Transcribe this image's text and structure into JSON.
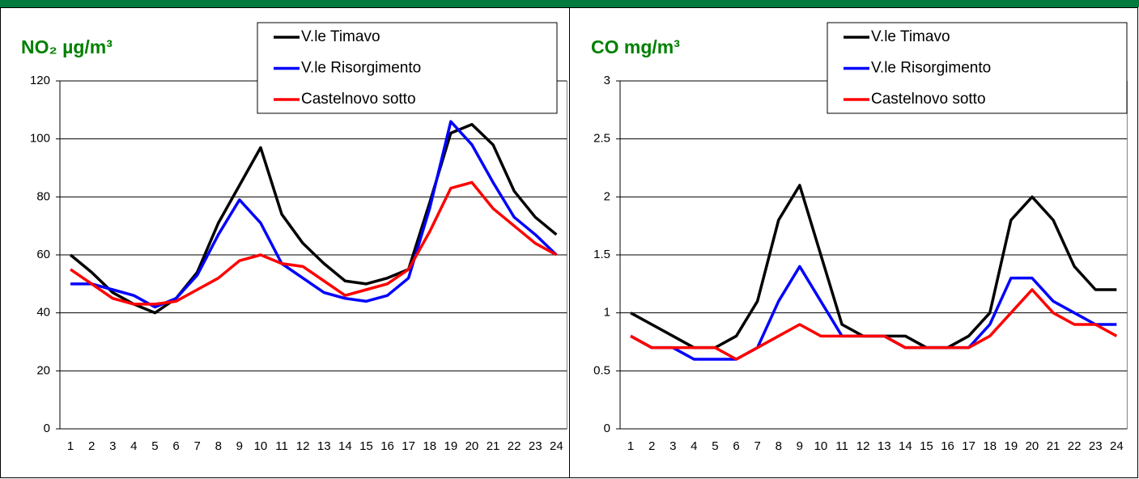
{
  "chart_data": [
    {
      "type": "line",
      "title": "NO₂ µg/m³",
      "categories": [
        "1",
        "2",
        "3",
        "4",
        "5",
        "6",
        "7",
        "8",
        "9",
        "10",
        "11",
        "12",
        "13",
        "14",
        "15",
        "16",
        "17",
        "18",
        "19",
        "20",
        "21",
        "22",
        "23",
        "24"
      ],
      "ylim": [
        0,
        120
      ],
      "yticks": [
        0,
        20,
        40,
        60,
        80,
        100,
        120
      ],
      "grid": true,
      "series": [
        {
          "name": "V.le Timavo",
          "color": "#000000",
          "values": [
            60,
            54,
            47,
            43,
            40,
            45,
            54,
            71,
            84,
            97,
            74,
            64,
            57,
            51,
            50,
            52,
            55,
            78,
            102,
            105,
            98,
            82,
            73,
            67
          ]
        },
        {
          "name": "V.le Risorgimento",
          "color": "#0000ff",
          "values": [
            50,
            50,
            48,
            46,
            42,
            45,
            53,
            67,
            79,
            71,
            57,
            52,
            47,
            45,
            44,
            46,
            52,
            76,
            106,
            98,
            85,
            73,
            67,
            60
          ]
        },
        {
          "name": "Castelnovo sotto",
          "color": "#ff0000",
          "values": [
            55,
            50,
            45,
            43,
            43,
            44,
            48,
            52,
            58,
            60,
            57,
            56,
            51,
            46,
            48,
            50,
            55,
            68,
            83,
            85,
            76,
            70,
            64,
            60
          ]
        }
      ]
    },
    {
      "type": "line",
      "title": "CO mg/m³",
      "categories": [
        "1",
        "2",
        "3",
        "4",
        "5",
        "6",
        "7",
        "8",
        "9",
        "10",
        "11",
        "12",
        "13",
        "14",
        "15",
        "16",
        "17",
        "18",
        "19",
        "20",
        "21",
        "22",
        "23",
        "24"
      ],
      "ylim": [
        0,
        3
      ],
      "yticks": [
        0,
        0.5,
        1,
        1.5,
        2,
        2.5,
        3
      ],
      "grid": true,
      "series": [
        {
          "name": "V.le Timavo",
          "color": "#000000",
          "values": [
            1.0,
            0.9,
            0.8,
            0.7,
            0.7,
            0.8,
            1.1,
            1.8,
            2.1,
            1.5,
            0.9,
            0.8,
            0.8,
            0.8,
            0.7,
            0.7,
            0.8,
            1.0,
            1.8,
            2.0,
            1.8,
            1.4,
            1.2,
            1.2
          ]
        },
        {
          "name": "V.le Risorgimento",
          "color": "#0000ff",
          "values": [
            0.8,
            0.7,
            0.7,
            0.6,
            0.6,
            0.6,
            0.7,
            1.1,
            1.4,
            1.1,
            0.8,
            0.8,
            0.8,
            0.7,
            0.7,
            0.7,
            0.7,
            0.9,
            1.3,
            1.3,
            1.1,
            1.0,
            0.9,
            0.9
          ]
        },
        {
          "name": "Castelnovo sotto",
          "color": "#ff0000",
          "values": [
            0.8,
            0.7,
            0.7,
            0.7,
            0.7,
            0.6,
            0.7,
            0.8,
            0.9,
            0.8,
            0.8,
            0.8,
            0.8,
            0.7,
            0.7,
            0.7,
            0.7,
            0.8,
            1.0,
            1.2,
            1.0,
            0.9,
            0.9,
            0.8
          ]
        }
      ]
    }
  ]
}
